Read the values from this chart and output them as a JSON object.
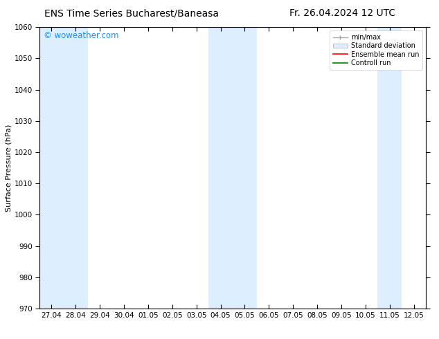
{
  "title_left": "ENS Time Series Bucharest/Baneasa",
  "title_right": "Fr. 26.04.2024 12 UTC",
  "ylabel": "Surface Pressure (hPa)",
  "ylim": [
    970,
    1060
  ],
  "yticks": [
    970,
    980,
    990,
    1000,
    1010,
    1020,
    1030,
    1040,
    1050,
    1060
  ],
  "xtick_labels": [
    "27.04",
    "28.04",
    "29.04",
    "30.04",
    "01.05",
    "02.05",
    "03.05",
    "04.05",
    "05.05",
    "06.05",
    "07.05",
    "08.05",
    "09.05",
    "10.05",
    "11.05",
    "12.05"
  ],
  "shaded_band_color": "#ddeeff",
  "watermark_text": "© woweather.com",
  "watermark_color": "#1e90ff",
  "background_color": "#ffffff",
  "title_fontsize": 10,
  "axis_fontsize": 8,
  "tick_fontsize": 7.5,
  "band_x_positions": [
    0,
    1,
    7,
    8,
    14
  ],
  "n_xticks": 16,
  "legend_items": [
    {
      "label": "min/max",
      "color": "#aaaaaa",
      "type": "errorbar"
    },
    {
      "label": "Standard deviation",
      "color": "#ddeeff",
      "type": "box"
    },
    {
      "label": "Ensemble mean run",
      "color": "red",
      "type": "line"
    },
    {
      "label": "Controll run",
      "color": "green",
      "type": "line"
    }
  ]
}
